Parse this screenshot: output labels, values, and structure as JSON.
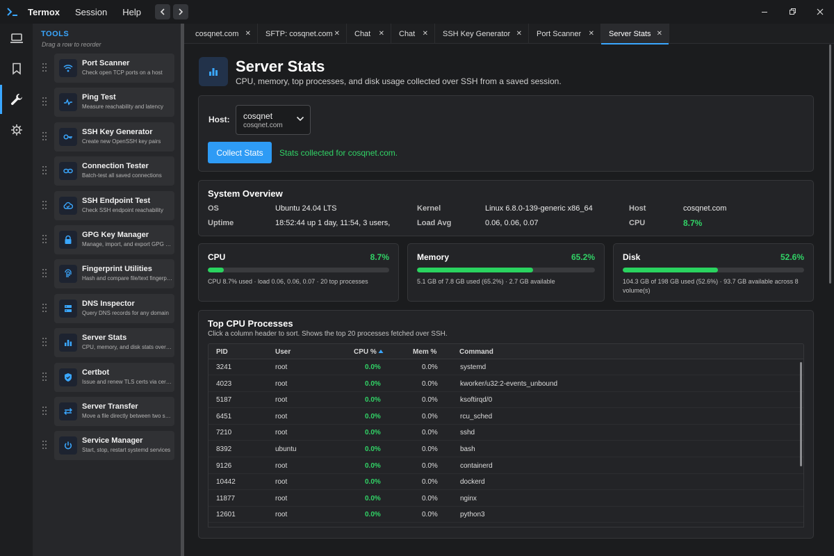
{
  "app": {
    "name": "Termox",
    "menu": [
      "Session",
      "Help"
    ]
  },
  "sidebar": {
    "title": "TOOLS",
    "subtitle": "Drag a row to reorder",
    "items": [
      {
        "name": "Port Scanner",
        "desc": "Check open TCP ports on a host",
        "icon": "wifi-icon"
      },
      {
        "name": "Ping Test",
        "desc": "Measure reachability and latency",
        "icon": "ping-icon"
      },
      {
        "name": "SSH Key Generator",
        "desc": "Create new OpenSSH key pairs",
        "icon": "key-icon"
      },
      {
        "name": "Connection Tester",
        "desc": "Batch-test all saved connections",
        "icon": "link-icon"
      },
      {
        "name": "SSH Endpoint Test",
        "desc": "Check SSH endpoint reachability",
        "icon": "cloud-check-icon"
      },
      {
        "name": "GPG Key Manager",
        "desc": "Manage, import, and export GPG keys",
        "icon": "lock-icon"
      },
      {
        "name": "Fingerprint Utilities",
        "desc": "Hash and compare file/text fingerprints",
        "icon": "fingerprint-icon"
      },
      {
        "name": "DNS Inspector",
        "desc": "Query DNS records for any domain",
        "icon": "server-icon"
      },
      {
        "name": "Server Stats",
        "desc": "CPU, memory, and disk stats over SSH",
        "icon": "bar-chart-icon"
      },
      {
        "name": "Certbot",
        "desc": "Issue and renew TLS certs via certbot",
        "icon": "shield-check-icon"
      },
      {
        "name": "Server Transfer",
        "desc": "Move a file directly between two servers",
        "icon": "transfer-icon"
      },
      {
        "name": "Service Manager",
        "desc": "Start, stop, restart systemd services",
        "icon": "power-icon"
      }
    ]
  },
  "tabs": [
    {
      "label": "cosqnet.com"
    },
    {
      "label": "SFTP: cosqnet.com"
    },
    {
      "label": "Chat"
    },
    {
      "label": "Chat"
    },
    {
      "label": "SSH Key Generator"
    },
    {
      "label": "Port Scanner"
    },
    {
      "label": "Server Stats",
      "active": true
    }
  ],
  "page": {
    "title": "Server Stats",
    "subtitle": "CPU, memory, top processes, and disk usage collected over SSH from a saved session."
  },
  "host_panel": {
    "label": "Host:",
    "selected_name": "cosqnet",
    "selected_host": "cosqnet.com",
    "button": "Collect Stats",
    "status": "Stats collected for cosqnet.com."
  },
  "overview": {
    "title": "System Overview",
    "os_label": "OS",
    "os": "Ubuntu 24.04 LTS",
    "uptime_label": "Uptime",
    "uptime": "18:52:44 up 1 day, 11:54, 3 users,",
    "kernel_label": "Kernel",
    "kernel": "Linux 6.8.0-139-generic x86_64",
    "load_label": "Load Avg",
    "load": "0.06, 0.06, 0.07",
    "host_label": "Host",
    "host": "cosqnet.com",
    "cpu_label": "CPU",
    "cpu": "8.7%"
  },
  "stats": {
    "cpu": {
      "title": "CPU",
      "pct": "8.7%",
      "fill": 0.087,
      "detail": "CPU 8.7% used · load 0.06, 0.06, 0.07 · 20 top processes"
    },
    "memory": {
      "title": "Memory",
      "pct": "65.2%",
      "fill": 0.652,
      "detail": "5.1 GB of 7.8 GB used (65.2%) · 2.7 GB available"
    },
    "disk": {
      "title": "Disk",
      "pct": "52.6%",
      "fill": 0.526,
      "detail": "104.3 GB of 198 GB used (52.6%) · 93.7 GB available across 8 volume(s)"
    }
  },
  "processes": {
    "title": "Top CPU Processes",
    "subtitle": "Click a column header to sort. Shows the top 20 processes fetched over SSH.",
    "columns": {
      "pid": "PID",
      "user": "User",
      "cpu": "CPU %",
      "mem": "Mem %",
      "command": "Command"
    },
    "rows": [
      {
        "pid": "3241",
        "user": "root",
        "cpu": "0.0%",
        "mem": "0.0%",
        "command": "systemd"
      },
      {
        "pid": "4023",
        "user": "root",
        "cpu": "0.0%",
        "mem": "0.0%",
        "command": "kworker/u32:2-events_unbound"
      },
      {
        "pid": "5187",
        "user": "root",
        "cpu": "0.0%",
        "mem": "0.0%",
        "command": "ksoftirqd/0"
      },
      {
        "pid": "6451",
        "user": "root",
        "cpu": "0.0%",
        "mem": "0.0%",
        "command": "rcu_sched"
      },
      {
        "pid": "7210",
        "user": "root",
        "cpu": "0.0%",
        "mem": "0.0%",
        "command": "sshd"
      },
      {
        "pid": "8392",
        "user": "ubuntu",
        "cpu": "0.0%",
        "mem": "0.0%",
        "command": "bash"
      },
      {
        "pid": "9126",
        "user": "root",
        "cpu": "0.0%",
        "mem": "0.0%",
        "command": "containerd"
      },
      {
        "pid": "10442",
        "user": "root",
        "cpu": "0.0%",
        "mem": "0.0%",
        "command": "dockerd"
      },
      {
        "pid": "11877",
        "user": "root",
        "cpu": "0.0%",
        "mem": "0.0%",
        "command": "nginx"
      },
      {
        "pid": "12601",
        "user": "root",
        "cpu": "0.0%",
        "mem": "0.0%",
        "command": "python3"
      }
    ]
  },
  "colors": {
    "accent": "#3aa7ff",
    "good": "#31d366",
    "bar": "#2ad35f"
  }
}
